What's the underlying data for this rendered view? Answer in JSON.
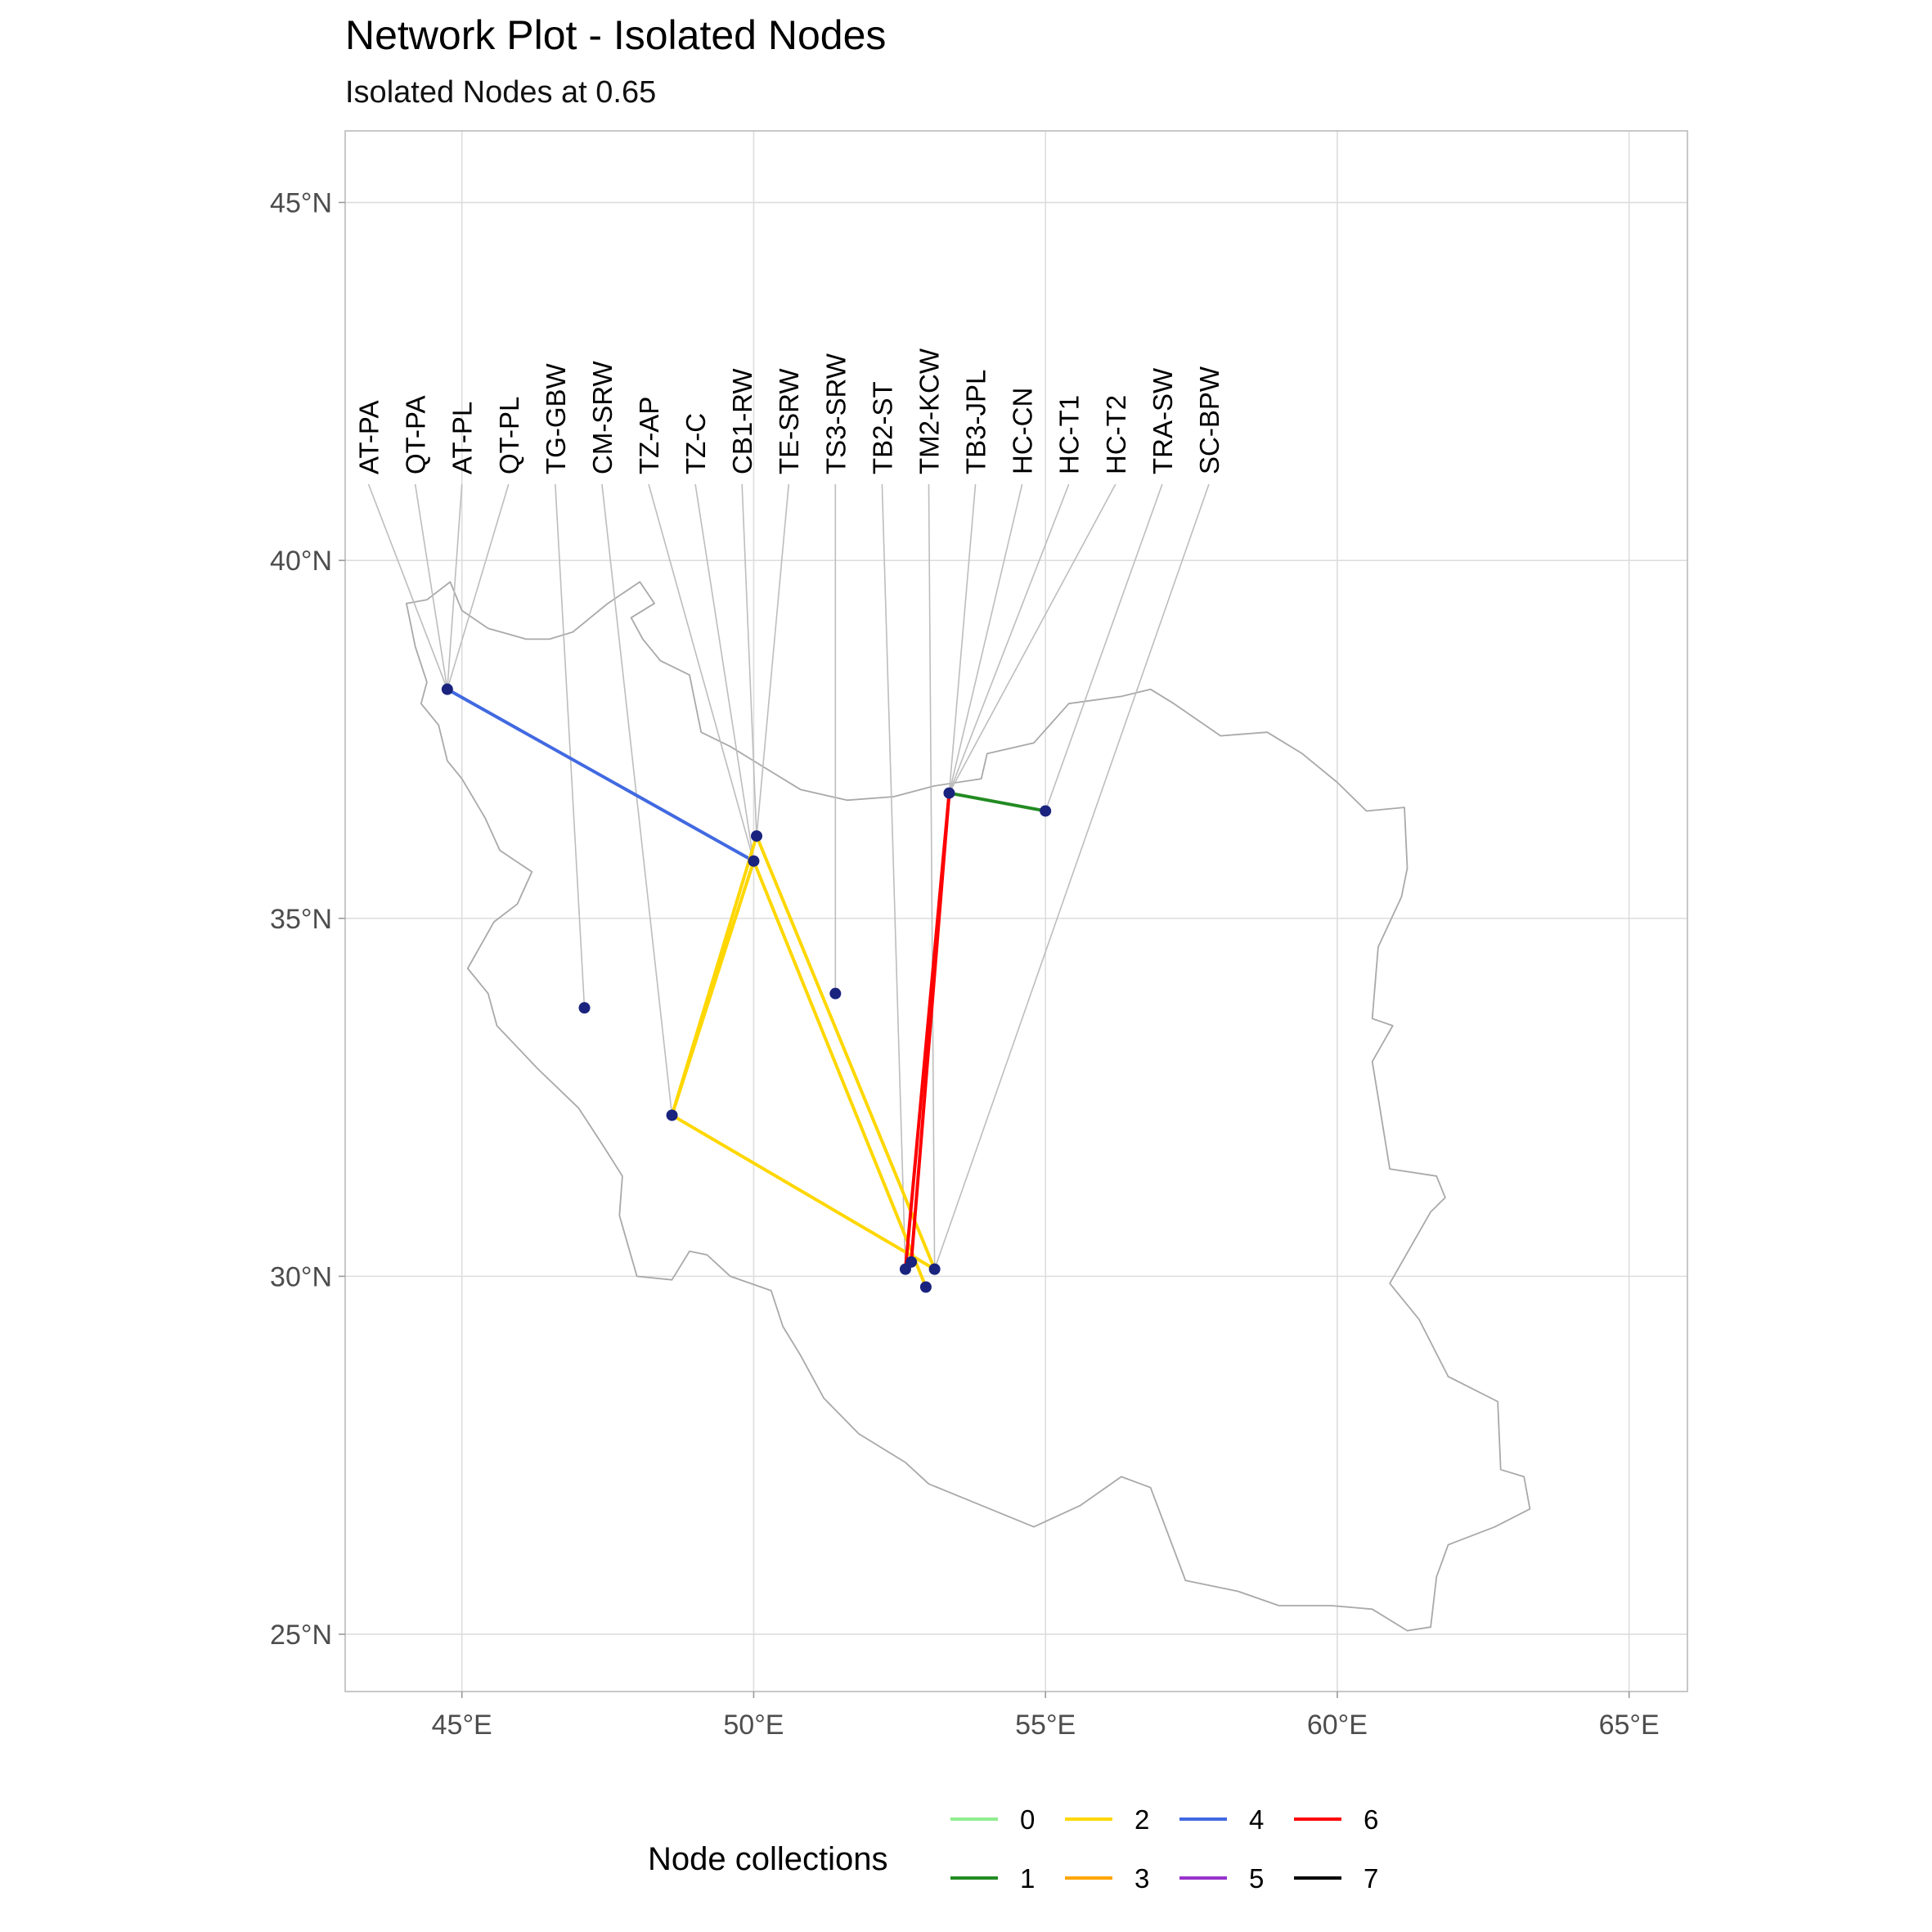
{
  "title": "Network Plot - Isolated Nodes",
  "subtitle": "Isolated Nodes at 0.65",
  "chart_data": {
    "type": "map",
    "region": "Iran",
    "xlim": [
      43.0,
      66.0
    ],
    "ylim": [
      24.2,
      46.0
    ],
    "x_ticks": [
      {
        "value": 45,
        "label": "45°E"
      },
      {
        "value": 50,
        "label": "50°E"
      },
      {
        "value": 55,
        "label": "55°E"
      },
      {
        "value": 60,
        "label": "60°E"
      },
      {
        "value": 65,
        "label": "65°E"
      }
    ],
    "y_ticks": [
      {
        "value": 25,
        "label": "25°N"
      },
      {
        "value": 30,
        "label": "30°N"
      },
      {
        "value": 35,
        "label": "35°N"
      },
      {
        "value": 40,
        "label": "40°N"
      },
      {
        "value": 45,
        "label": "45°N"
      }
    ],
    "grid": true,
    "nodes": [
      {
        "id": "tabriz",
        "lon": 44.75,
        "lat": 38.2
      },
      {
        "id": "tehran-1",
        "lon": 50.05,
        "lat": 36.15
      },
      {
        "id": "tehran-2",
        "lon": 50.0,
        "lat": 35.8
      },
      {
        "id": "ahvaz",
        "lon": 48.6,
        "lat": 32.25
      },
      {
        "id": "kermanshah-area",
        "lon": 47.1,
        "lat": 33.75
      },
      {
        "id": "isfahan-east",
        "lon": 51.4,
        "lat": 33.95
      },
      {
        "id": "sari",
        "lon": 53.35,
        "lat": 36.75
      },
      {
        "id": "gorgan-east",
        "lon": 55.0,
        "lat": 36.5
      },
      {
        "id": "shiraz-1",
        "lon": 52.6,
        "lat": 30.1
      },
      {
        "id": "shiraz-2",
        "lon": 52.7,
        "lat": 30.2
      },
      {
        "id": "shiraz-3",
        "lon": 53.1,
        "lat": 30.1
      },
      {
        "id": "shiraz-4",
        "lon": 52.95,
        "lat": 29.85
      }
    ],
    "edges": [
      {
        "from": "tabriz",
        "to": "tehran-2",
        "collection": "4"
      },
      {
        "from": "tehran-1",
        "to": "ahvaz",
        "collection": "2"
      },
      {
        "from": "tehran-2",
        "to": "ahvaz",
        "collection": "2"
      },
      {
        "from": "tehran-1",
        "to": "shiraz-3",
        "collection": "2"
      },
      {
        "from": "tehran-2",
        "to": "shiraz-4",
        "collection": "2"
      },
      {
        "from": "ahvaz",
        "to": "shiraz-3",
        "collection": "2"
      },
      {
        "from": "sari",
        "to": "gorgan-east",
        "collection": "1"
      },
      {
        "from": "sari",
        "to": "shiraz-1",
        "collection": "6"
      },
      {
        "from": "sari",
        "to": "shiraz-2",
        "collection": "6"
      }
    ],
    "labels": [
      {
        "text": "AT-PA",
        "lon": 43.4,
        "node": "tabriz"
      },
      {
        "text": "QT-PA",
        "lon": 44.2,
        "node": "tabriz"
      },
      {
        "text": "AT-PL",
        "lon": 45.0,
        "node": "tabriz"
      },
      {
        "text": "QT-PL",
        "lon": 45.8,
        "node": "tabriz"
      },
      {
        "text": "TG-GBW",
        "lon": 46.6,
        "node": "kermanshah-area"
      },
      {
        "text": "CM-SRW",
        "lon": 47.4,
        "node": "ahvaz"
      },
      {
        "text": "TZ-AP",
        "lon": 48.2,
        "node": "tehran-2"
      },
      {
        "text": "TZ-C",
        "lon": 49.0,
        "node": "tehran-2"
      },
      {
        "text": "CB1-RW",
        "lon": 49.8,
        "node": "tehran-1"
      },
      {
        "text": "TE-SRW",
        "lon": 50.6,
        "node": "tehran-1"
      },
      {
        "text": "TS3-SRW",
        "lon": 51.4,
        "node": "isfahan-east"
      },
      {
        "text": "TB2-ST",
        "lon": 52.2,
        "node": "shiraz-1"
      },
      {
        "text": "TM2-KCW",
        "lon": 53.0,
        "node": "shiraz-3"
      },
      {
        "text": "TB3-JPL",
        "lon": 53.8,
        "node": "sari"
      },
      {
        "text": "HC-CN",
        "lon": 54.6,
        "node": "sari"
      },
      {
        "text": "HC-T1",
        "lon": 55.4,
        "node": "sari"
      },
      {
        "text": "HC-T2",
        "lon": 56.2,
        "node": "sari"
      },
      {
        "text": "TRA-SW",
        "lon": 57.0,
        "node": "gorgan-east"
      },
      {
        "text": "SC-BPW",
        "lon": 57.8,
        "node": "shiraz-3"
      }
    ],
    "legend": {
      "title": "Node collections",
      "placement": "bottom",
      "items": [
        {
          "label": "0",
          "color": "#90EE90"
        },
        {
          "label": "1",
          "color": "#228B22"
        },
        {
          "label": "2",
          "color": "#FFD700"
        },
        {
          "label": "3",
          "color": "#FFA500"
        },
        {
          "label": "4",
          "color": "#4169E1"
        },
        {
          "label": "5",
          "color": "#9932CC"
        },
        {
          "label": "6",
          "color": "#FF0000"
        },
        {
          "label": "7",
          "color": "#000000"
        }
      ]
    },
    "node_color": "#1A237E",
    "leader_color": "#BDBDBD",
    "border_color": "#A9A9A9",
    "grid_color": "#DDDDDD",
    "panel_border_color": "#BBBBBB",
    "border_polygon": [
      [
        44.05,
        39.4
      ],
      [
        44.4,
        39.45
      ],
      [
        44.8,
        39.7
      ],
      [
        45.0,
        39.3
      ],
      [
        45.45,
        39.05
      ],
      [
        46.1,
        38.9
      ],
      [
        46.5,
        38.9
      ],
      [
        46.9,
        39.0
      ],
      [
        47.5,
        39.4
      ],
      [
        48.05,
        39.7
      ],
      [
        48.3,
        39.4
      ],
      [
        47.9,
        39.2
      ],
      [
        48.1,
        38.9
      ],
      [
        48.4,
        38.6
      ],
      [
        48.9,
        38.4
      ],
      [
        49.1,
        37.6
      ],
      [
        49.6,
        37.4
      ],
      [
        50.2,
        37.1
      ],
      [
        50.8,
        36.8
      ],
      [
        51.6,
        36.65
      ],
      [
        52.4,
        36.7
      ],
      [
        53.1,
        36.85
      ],
      [
        53.9,
        36.95
      ],
      [
        54.0,
        37.3
      ],
      [
        54.8,
        37.45
      ],
      [
        55.4,
        38.0
      ],
      [
        56.3,
        38.1
      ],
      [
        56.8,
        38.2
      ],
      [
        57.2,
        38.0
      ],
      [
        58.0,
        37.55
      ],
      [
        58.8,
        37.6
      ],
      [
        59.4,
        37.3
      ],
      [
        60.0,
        36.9
      ],
      [
        60.5,
        36.5
      ],
      [
        61.15,
        36.55
      ],
      [
        61.2,
        35.7
      ],
      [
        61.1,
        35.3
      ],
      [
        60.7,
        34.6
      ],
      [
        60.6,
        33.6
      ],
      [
        60.95,
        33.5
      ],
      [
        60.6,
        33.0
      ],
      [
        60.8,
        32.0
      ],
      [
        60.9,
        31.5
      ],
      [
        61.7,
        31.4
      ],
      [
        61.85,
        31.1
      ],
      [
        61.6,
        30.9
      ],
      [
        60.9,
        29.9
      ],
      [
        61.4,
        29.4
      ],
      [
        61.9,
        28.6
      ],
      [
        62.75,
        28.25
      ],
      [
        62.8,
        27.3
      ],
      [
        63.2,
        27.2
      ],
      [
        63.3,
        26.75
      ],
      [
        62.7,
        26.5
      ],
      [
        61.9,
        26.25
      ],
      [
        61.7,
        25.8
      ],
      [
        61.6,
        25.1
      ],
      [
        61.2,
        25.05
      ],
      [
        60.6,
        25.35
      ],
      [
        59.9,
        25.4
      ],
      [
        59.0,
        25.4
      ],
      [
        58.3,
        25.6
      ],
      [
        57.4,
        25.75
      ],
      [
        57.1,
        26.4
      ],
      [
        56.8,
        27.05
      ],
      [
        56.3,
        27.2
      ],
      [
        55.6,
        26.8
      ],
      [
        54.8,
        26.5
      ],
      [
        54.2,
        26.7
      ],
      [
        53.6,
        26.9
      ],
      [
        53.0,
        27.1
      ],
      [
        52.6,
        27.4
      ],
      [
        51.8,
        27.8
      ],
      [
        51.2,
        28.3
      ],
      [
        50.8,
        28.9
      ],
      [
        50.5,
        29.3
      ],
      [
        50.3,
        29.8
      ],
      [
        49.6,
        30.0
      ],
      [
        49.2,
        30.3
      ],
      [
        48.9,
        30.35
      ],
      [
        48.6,
        29.95
      ],
      [
        48.0,
        30.0
      ],
      [
        47.7,
        30.85
      ],
      [
        47.75,
        31.4
      ],
      [
        47.4,
        31.85
      ],
      [
        47.0,
        32.35
      ],
      [
        46.3,
        32.9
      ],
      [
        45.6,
        33.5
      ],
      [
        45.45,
        33.95
      ],
      [
        45.1,
        34.3
      ],
      [
        45.55,
        34.95
      ],
      [
        45.95,
        35.2
      ],
      [
        46.2,
        35.65
      ],
      [
        45.65,
        35.95
      ],
      [
        45.4,
        36.4
      ],
      [
        45.0,
        36.95
      ],
      [
        44.75,
        37.2
      ],
      [
        44.6,
        37.7
      ],
      [
        44.3,
        38.0
      ],
      [
        44.4,
        38.3
      ],
      [
        44.2,
        38.8
      ],
      [
        44.1,
        39.2
      ]
    ]
  }
}
